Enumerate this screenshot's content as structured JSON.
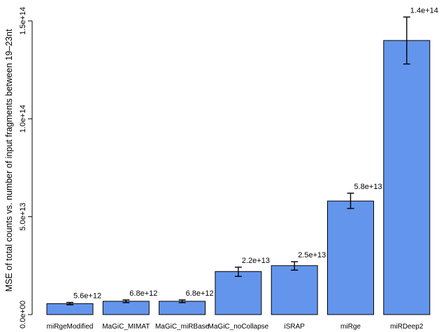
{
  "chart_data": {
    "type": "bar",
    "ylabel": "MSE of total counts vs. number of input fragments between 19–23nt",
    "xlabel": "",
    "ylim": [
      0,
      150000000000000.0
    ],
    "y_ticks": [
      0,
      50000000000000.0,
      100000000000000.0,
      150000000000000.0
    ],
    "y_tick_labels": [
      "0.0e+00",
      "5.0e+13",
      "1.0e+14",
      "1.5e+14"
    ],
    "grid": false,
    "bar_color": "#6495ED",
    "categories": [
      "miRgeModified",
      "MaGiC_MIMAT",
      "MaGiC_miRBase",
      "MaGiC_noCollapse",
      "iSRAP",
      "miRge",
      "miRDeep2"
    ],
    "values": [
      5600000000000.0,
      6800000000000.0,
      6800000000000.0,
      22000000000000.0,
      25000000000000.0,
      58000000000000.0,
      140000000000000.0
    ],
    "error_bars": [
      [
        5000000000000.0,
        6200000000000.0
      ],
      [
        6100000000000.0,
        7500000000000.0
      ],
      [
        6100000000000.0,
        7500000000000.0
      ],
      [
        19500000000000.0,
        24200000000000.0
      ],
      [
        22700000000000.0,
        27000000000000.0
      ],
      [
        54200000000000.0,
        62000000000000.0
      ],
      [
        128000000000000.0,
        152000000000000.0
      ]
    ],
    "data_labels": [
      "5.6e+12",
      "6.8e+12",
      "6.8e+12",
      "2.2e+13",
      "2.5e+13",
      "5.8e+13",
      "1.4e+14"
    ]
  }
}
